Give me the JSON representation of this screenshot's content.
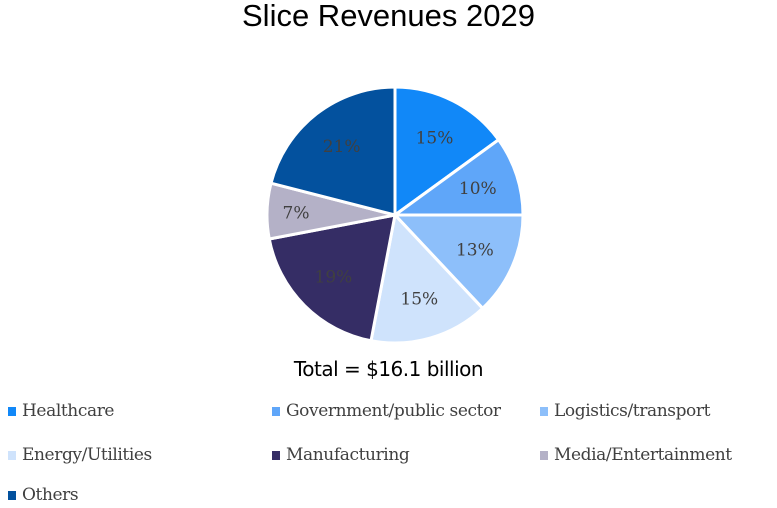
{
  "chart_data": {
    "type": "pie",
    "title": "Slice Revenues 2029",
    "annotation": "Total = $16.1 billion",
    "start": "top",
    "direction": "clockwise",
    "legend_position": "bottom",
    "slices": [
      {
        "label": "Healthcare",
        "value": 15,
        "data_label": "15%",
        "color": "#1188F8"
      },
      {
        "label": "Government/public sector",
        "value": 10,
        "data_label": "10%",
        "color": "#5FA6F9"
      },
      {
        "label": "Logistics/transport",
        "value": 13,
        "data_label": "13%",
        "color": "#8DBFFA"
      },
      {
        "label": "Energy/Utilities",
        "value": 15,
        "data_label": "15%",
        "color": "#CFE3FC"
      },
      {
        "label": "Manufacturing",
        "value": 19,
        "data_label": "19%",
        "color": "#352D65"
      },
      {
        "label": "Media/Entertainment",
        "value": 7,
        "data_label": "7%",
        "color": "#B4B1C7"
      },
      {
        "label": "Others",
        "value": 21,
        "data_label": "21%",
        "color": "#03519E"
      }
    ]
  }
}
